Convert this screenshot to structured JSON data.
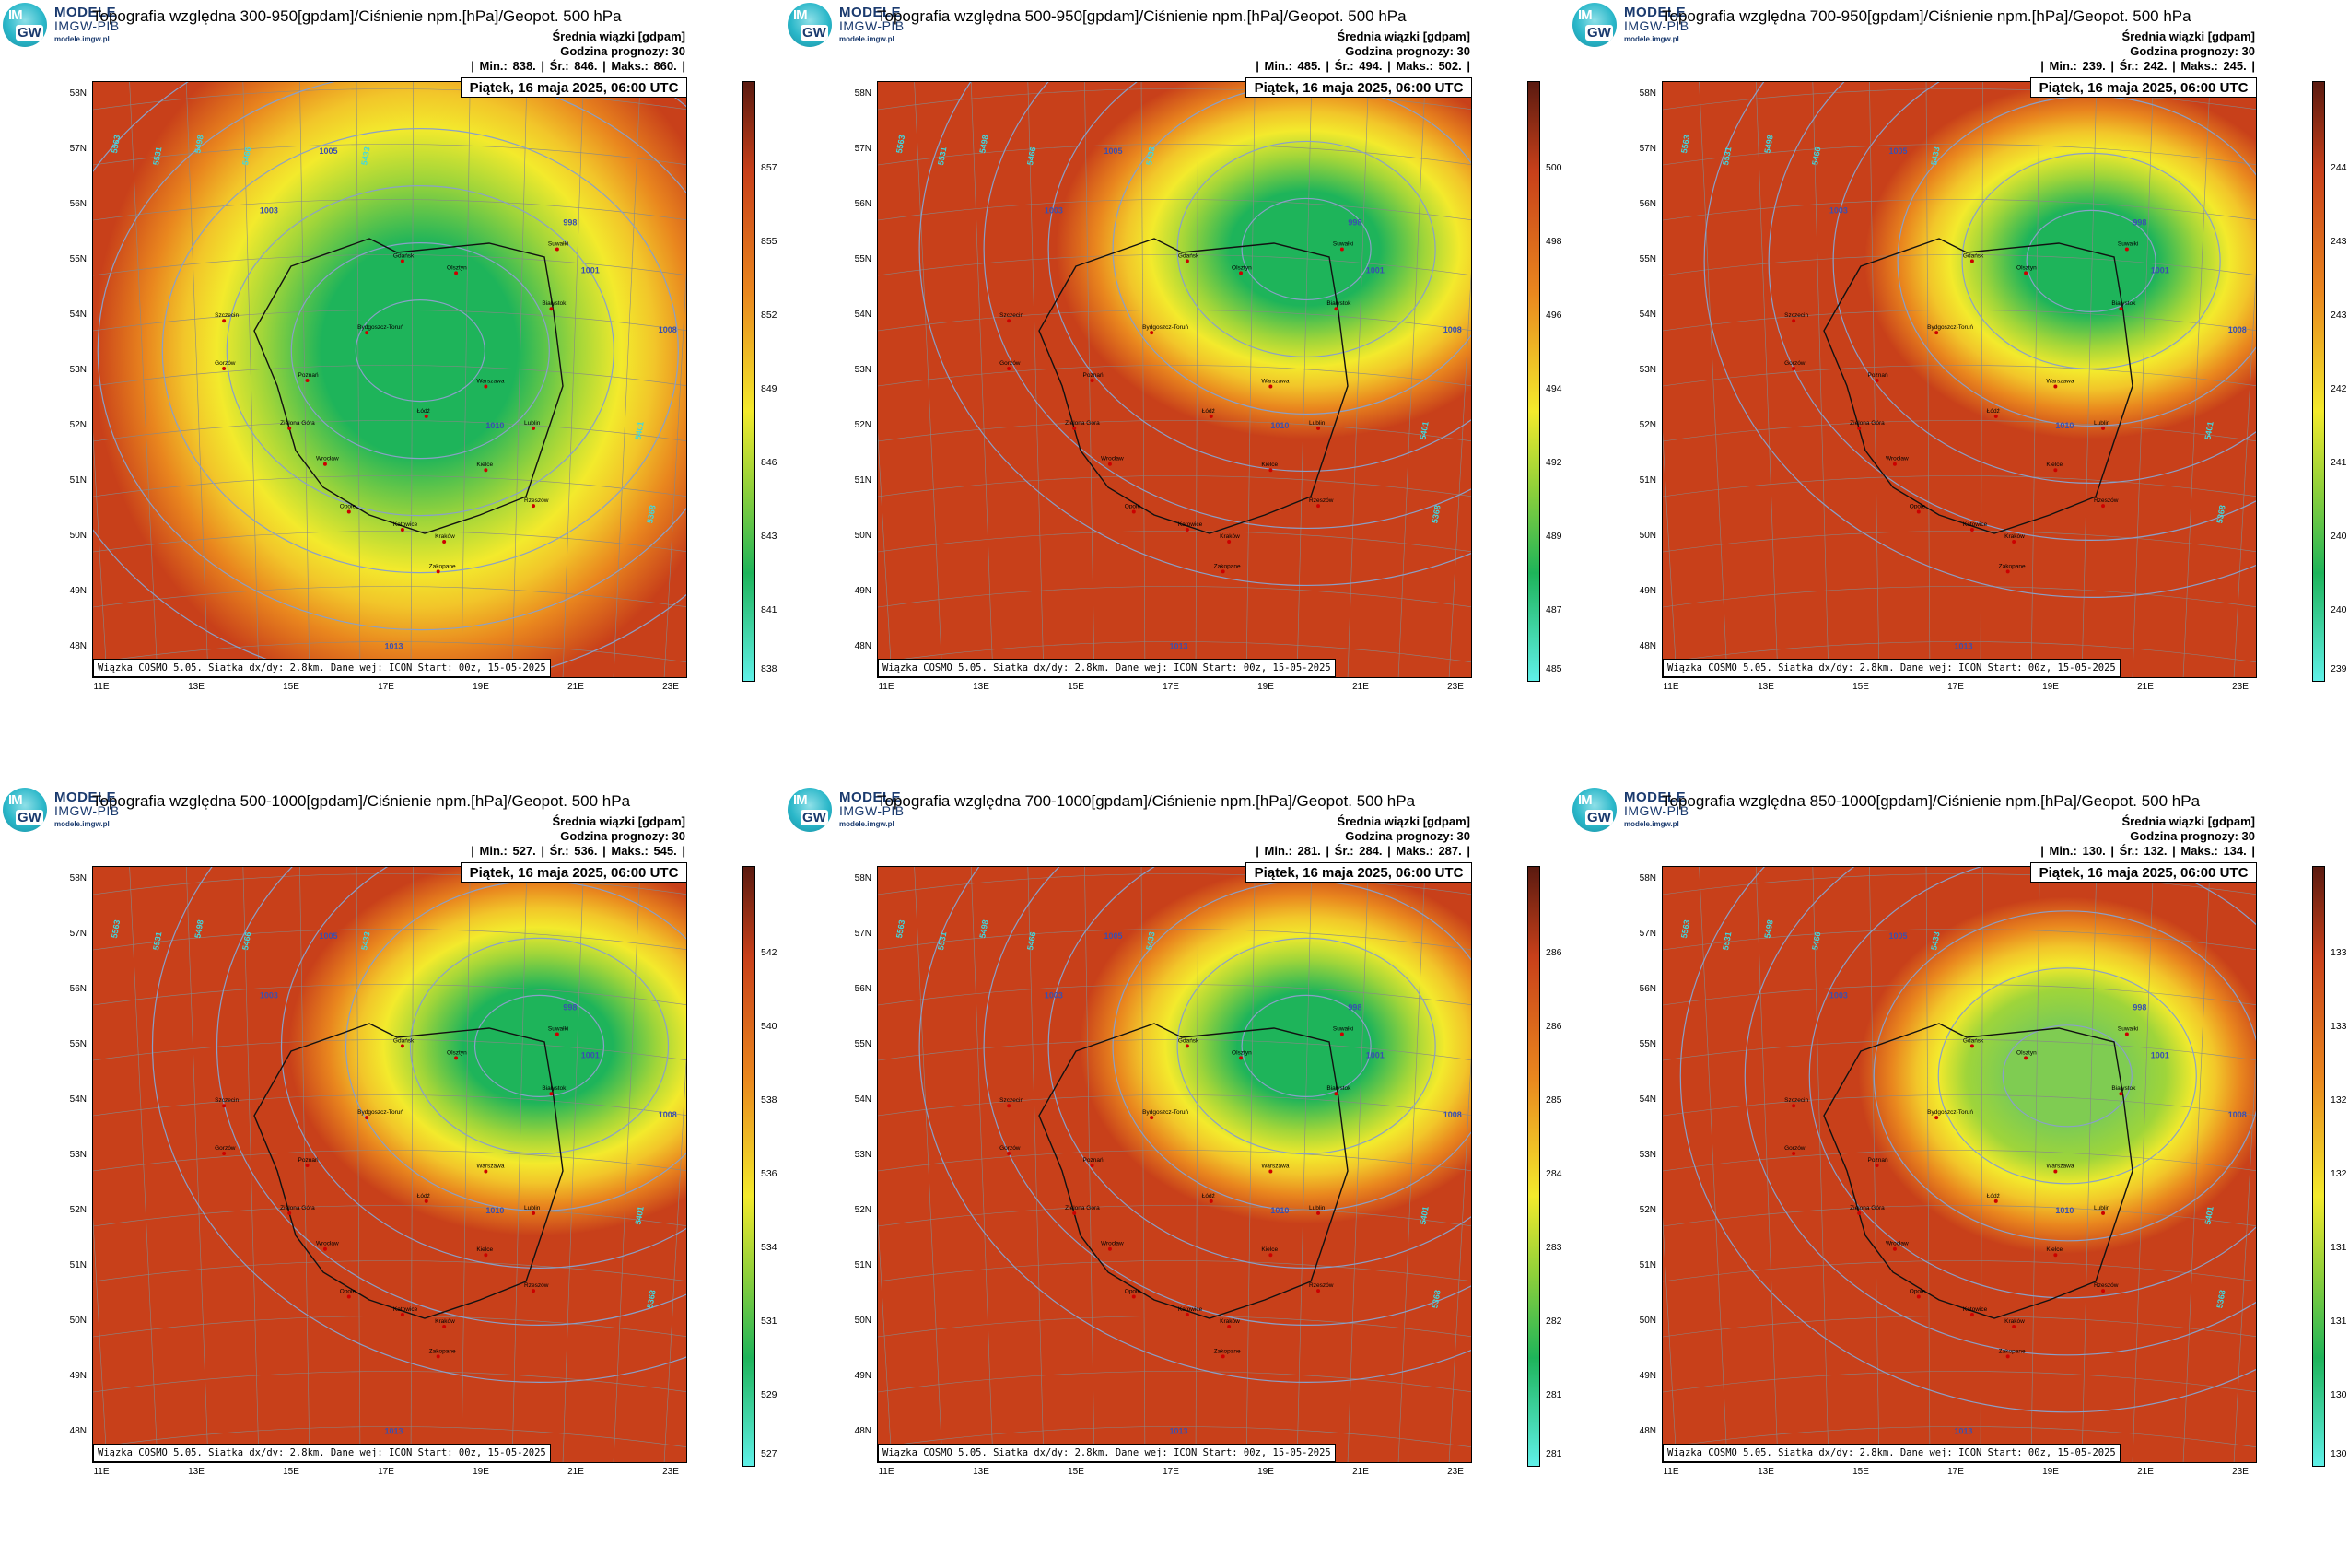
{
  "logo": {
    "line1": "MODELE",
    "line2": "IMGW-PIB",
    "line3": "modele.imgw.pl",
    "im": "IM",
    "gw": "GW"
  },
  "common": {
    "subtitle": "Średnia wiązki [gdpam]",
    "forecast_hour": "Godzina prognozy: 30",
    "date": "Piątek, 16 maja 2025, 06:00 UTC",
    "footer": "Wiązka COSMO 5.05. Siatka dx/dy: 2.8km. Dane wej: ICON Start: 00z, 15-05-2025",
    "lat_labels": [
      "58N",
      "57N",
      "56N",
      "55N",
      "54N",
      "53N",
      "52N",
      "51N",
      "50N",
      "49N",
      "48N"
    ],
    "lon_labels": [
      "11E",
      "13E",
      "15E",
      "17E",
      "19E",
      "21E",
      "23E"
    ],
    "map_text": {
      "cities": [
        "Gdańsk",
        "Olsztyn",
        "Suwałki",
        "Białystok",
        "Szczecin",
        "Gorzów",
        "Bydgoszcz-Toruń",
        "Poznań",
        "Warszawa",
        "Zielona Góra",
        "Łódź",
        "Lublin",
        "Wrocław",
        "Kielce",
        "Opole",
        "Katowice",
        "Kraków",
        "Rzeszów",
        "Zakopane"
      ],
      "isobars": [
        "1003",
        "1005",
        "1008",
        "998",
        "1001",
        "1010",
        "1013"
      ],
      "geopotential": [
        "5563",
        "5531",
        "5498",
        "5466",
        "5433",
        "5401",
        "5368"
      ]
    }
  },
  "panels": [
    {
      "title": "Topografia względna 300-950[gpdam]/Ciśnienie npm.[hPa]/Geopot. 500 hPa",
      "stats": "| Min.:   838. | Śr.:   846. | Maks.:   860. |",
      "colorbar": [
        "857",
        "855",
        "852",
        "849",
        "846",
        "843",
        "841",
        "838"
      ]
    },
    {
      "title": "Topografia względna 500-950[gpdam]/Ciśnienie npm.[hPa]/Geopot. 500 hPa",
      "stats": "| Min.:   485. | Śr.:   494. | Maks.:   502. |",
      "colorbar": [
        "500",
        "498",
        "496",
        "494",
        "492",
        "489",
        "487",
        "485"
      ]
    },
    {
      "title": "Topografia względna 700-950[gpdam]/Ciśnienie npm.[hPa]/Geopot. 500 hPa",
      "stats": "| Min.:   239. | Śr.:   242. | Maks.:   245. |",
      "colorbar": [
        "244",
        "243",
        "243",
        "242",
        "241",
        "240",
        "240",
        "239"
      ]
    },
    {
      "title": "Topografia względna 500-1000[gpdam]/Ciśnienie npm.[hPa]/Geopot. 500 hPa",
      "stats": "| Min.:   527. | Śr.:   536. | Maks.:   545. |",
      "colorbar": [
        "542",
        "540",
        "538",
        "536",
        "534",
        "531",
        "529",
        "527"
      ]
    },
    {
      "title": "Topografia względna 700-1000[gpdam]/Ciśnienie npm.[hPa]/Geopot. 500 hPa",
      "stats": "| Min.:   281. | Śr.:   284. | Maks.:   287. |",
      "colorbar": [
        "286",
        "286",
        "285",
        "284",
        "283",
        "282",
        "281",
        "281"
      ]
    },
    {
      "title": "Topografia względna 850-1000[gpdam]/Ciśnienie npm.[hPa]/Geopot. 500 hPa",
      "stats": "| Min.:   130. | Śr.:   132. | Maks.:   134. |",
      "colorbar": [
        "133",
        "133",
        "132",
        "132",
        "131",
        "131",
        "130",
        "130"
      ]
    }
  ],
  "colors": {
    "dark_brown": "#5a1a10",
    "red": "#c8401a",
    "orange": "#e9861e",
    "yellow": "#f3ea2c",
    "green": "#1eb45a",
    "teal": "#40e0d0",
    "cyan_light": "#5ff0e8"
  }
}
